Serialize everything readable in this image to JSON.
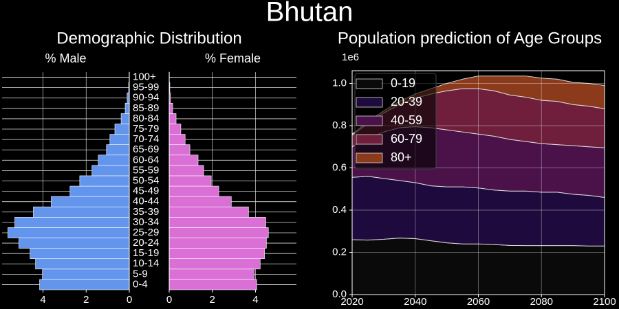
{
  "title": "Bhutan",
  "chart_data": [
    {
      "type": "pyramid",
      "title": "Demographic Distribution",
      "categories": [
        "0-4",
        "5-9",
        "10-14",
        "15-19",
        "20-24",
        "25-29",
        "30-34",
        "35-39",
        "40-44",
        "45-49",
        "50-54",
        "55-59",
        "60-64",
        "65-69",
        "70-74",
        "75-79",
        "80-84",
        "85-89",
        "90-94",
        "95-99",
        "100+"
      ],
      "series": [
        {
          "name": "% Male",
          "color": "#6495ed",
          "values": [
            4.16,
            4.03,
            4.35,
            4.6,
            5.12,
            5.63,
            5.31,
            4.45,
            3.62,
            2.75,
            2.3,
            1.73,
            1.44,
            1.06,
            0.9,
            0.67,
            0.38,
            0.19,
            0.1,
            0.03,
            0.01
          ]
        },
        {
          "name": "% Female",
          "color": "#da70d6",
          "values": [
            4.06,
            3.94,
            4.22,
            4.42,
            4.51,
            4.6,
            4.48,
            3.68,
            2.88,
            2.3,
            1.95,
            1.6,
            1.34,
            0.96,
            0.74,
            0.54,
            0.32,
            0.16,
            0.06,
            0.03,
            0.01
          ]
        }
      ],
      "xlim": [
        0,
        5.9
      ],
      "xticks": [
        0,
        2,
        4
      ],
      "grid": true
    },
    {
      "type": "area",
      "title": "Population prediction of Age Groups",
      "y_offset_label": "1e6",
      "x": [
        2020,
        2025,
        2030,
        2035,
        2040,
        2045,
        2050,
        2055,
        2060,
        2065,
        2070,
        2075,
        2080,
        2085,
        2090,
        2095,
        2100
      ],
      "series": [
        {
          "name": "0-19",
          "color": "#0a0a0a",
          "values": [
            0.26,
            0.258,
            0.262,
            0.268,
            0.265,
            0.255,
            0.245,
            0.24,
            0.24,
            0.237,
            0.233,
            0.232,
            0.232,
            0.232,
            0.232,
            0.23,
            0.23
          ]
        },
        {
          "name": "20-39",
          "color": "#1e0a3c",
          "values": [
            0.295,
            0.302,
            0.288,
            0.272,
            0.265,
            0.26,
            0.265,
            0.27,
            0.265,
            0.258,
            0.257,
            0.258,
            0.253,
            0.253,
            0.243,
            0.24,
            0.23
          ]
        },
        {
          "name": "40-59",
          "color": "#4a1248",
          "values": [
            0.145,
            0.18,
            0.22,
            0.25,
            0.265,
            0.275,
            0.27,
            0.26,
            0.255,
            0.255,
            0.245,
            0.235,
            0.23,
            0.225,
            0.23,
            0.23,
            0.235
          ]
        },
        {
          "name": "60-79",
          "color": "#6f1f3b",
          "values": [
            0.055,
            0.07,
            0.09,
            0.11,
            0.135,
            0.16,
            0.185,
            0.205,
            0.215,
            0.215,
            0.21,
            0.21,
            0.205,
            0.205,
            0.195,
            0.192,
            0.185
          ]
        },
        {
          "name": "80+",
          "color": "#8b3a1b",
          "values": [
            0.005,
            0.01,
            0.01,
            0.015,
            0.02,
            0.025,
            0.035,
            0.045,
            0.06,
            0.07,
            0.09,
            0.1,
            0.105,
            0.105,
            0.105,
            0.108,
            0.11
          ]
        }
      ],
      "xlim": [
        2020,
        2100
      ],
      "xticks": [
        2020,
        2040,
        2060,
        2080,
        2100
      ],
      "ylim": [
        0,
        1.06
      ],
      "yticks": [
        {
          "value": 0,
          "label": "0.0"
        },
        0.2,
        0.4,
        0.6,
        0.8,
        {
          "value": 1,
          "label": "1.0"
        }
      ],
      "grid": true,
      "legend": "upper-left"
    }
  ]
}
